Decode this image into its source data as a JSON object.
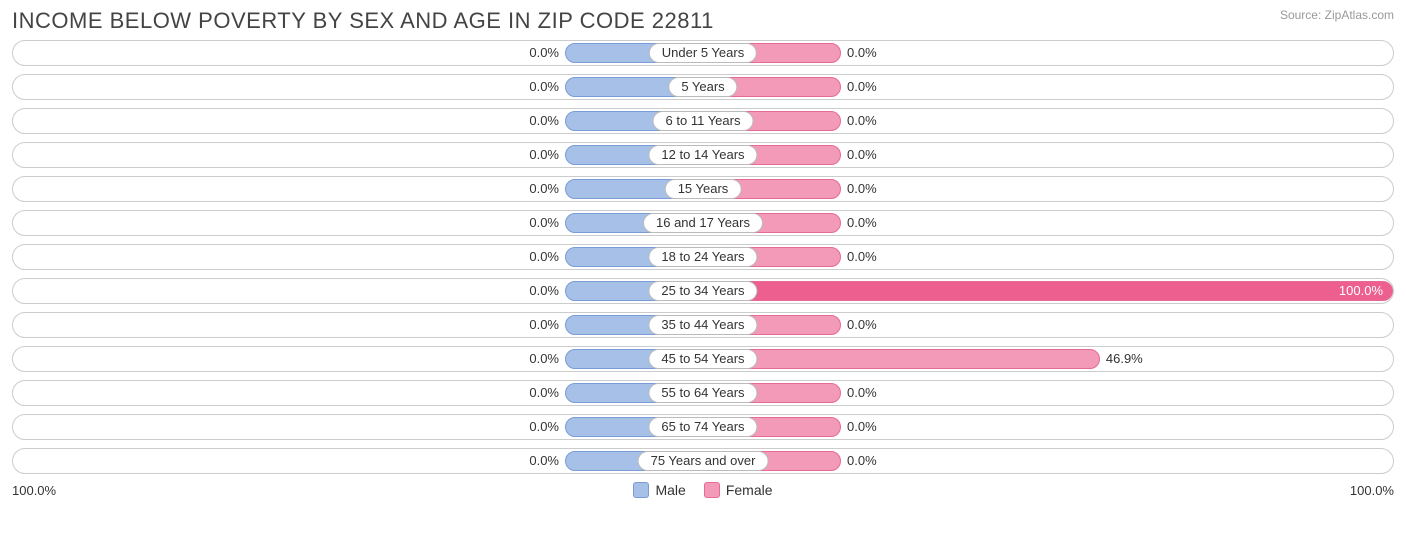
{
  "title": "INCOME BELOW POVERTY BY SEX AND AGE IN ZIP CODE 22811",
  "source": "Source: ZipAtlas.com",
  "chart": {
    "type": "diverging-bar",
    "axis_min_label": "100.0%",
    "axis_max_label": "100.0%",
    "axis_max": 100.0,
    "min_bar_pct": 10.0,
    "track_border": "#cccccc",
    "track_bg": "#ffffff",
    "pill_border": "#bbbbbb",
    "label_fontsize": 13,
    "title_fontsize": 22,
    "title_color": "#444444",
    "source_color": "#999999",
    "series": {
      "male": {
        "label": "Male",
        "fill": "#a7c0e8",
        "border": "#7a9cd4"
      },
      "female": {
        "label": "Female",
        "fill": "#f29ab8",
        "border": "#e76a95",
        "full_fill": "#ec5f8f"
      }
    },
    "rows": [
      {
        "category": "Under 5 Years",
        "male": 0.0,
        "female": 0.0
      },
      {
        "category": "5 Years",
        "male": 0.0,
        "female": 0.0
      },
      {
        "category": "6 to 11 Years",
        "male": 0.0,
        "female": 0.0
      },
      {
        "category": "12 to 14 Years",
        "male": 0.0,
        "female": 0.0
      },
      {
        "category": "15 Years",
        "male": 0.0,
        "female": 0.0
      },
      {
        "category": "16 and 17 Years",
        "male": 0.0,
        "female": 0.0
      },
      {
        "category": "18 to 24 Years",
        "male": 0.0,
        "female": 0.0
      },
      {
        "category": "25 to 34 Years",
        "male": 0.0,
        "female": 100.0
      },
      {
        "category": "35 to 44 Years",
        "male": 0.0,
        "female": 0.0
      },
      {
        "category": "45 to 54 Years",
        "male": 0.0,
        "female": 46.9
      },
      {
        "category": "55 to 64 Years",
        "male": 0.0,
        "female": 0.0
      },
      {
        "category": "65 to 74 Years",
        "male": 0.0,
        "female": 0.0
      },
      {
        "category": "75 Years and over",
        "male": 0.0,
        "female": 0.0
      }
    ]
  }
}
